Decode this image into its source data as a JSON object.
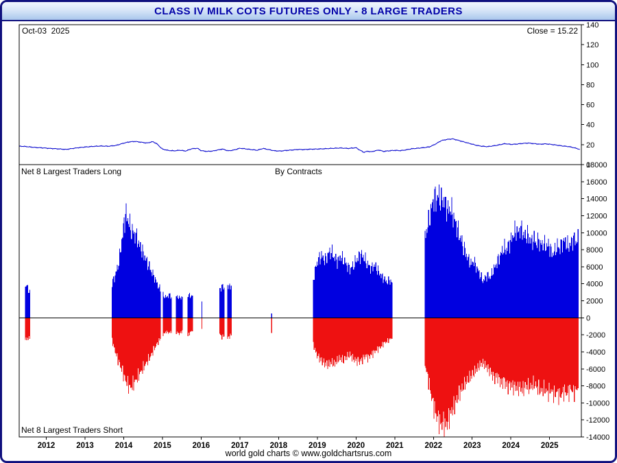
{
  "header": {
    "title": "CLASS IV MILK COTS FUTURES ONLY - 8 LARGE TRADERS"
  },
  "top_panel": {
    "date_label": "Oct-03  2025",
    "close_label": "Close = 15.22"
  },
  "bottom_panel": {
    "long_label": "Net 8 Largest Traders Long",
    "by_contracts_label": "By Contracts",
    "short_label": "Net 8 Largest Traders Short"
  },
  "footer": {
    "text": "world gold charts © www.goldchartsrus.com"
  },
  "colors": {
    "frame_border": "#10107e",
    "title_text": "#0000a8",
    "axis": "#000000",
    "price_line": "#0000cc",
    "long_bar": "#0000e0",
    "short_bar": "#ee1111"
  },
  "chart_data": [
    {
      "type": "line",
      "title": "Class IV Milk futures price",
      "ylabel_side": "right",
      "ylim": [
        0,
        140
      ],
      "ytick_step": 20,
      "xlim": [
        2011.3,
        2025.82
      ],
      "color": "#0000cc",
      "close_value": 15.22,
      "points": [
        [
          2011.3,
          18.5
        ],
        [
          2011.5,
          18.0
        ],
        [
          2011.7,
          17.2
        ],
        [
          2011.9,
          16.8
        ],
        [
          2012.1,
          16.2
        ],
        [
          2012.3,
          15.8
        ],
        [
          2012.5,
          15.2
        ],
        [
          2012.65,
          16.0
        ],
        [
          2012.8,
          16.8
        ],
        [
          2013.0,
          17.6
        ],
        [
          2013.2,
          18.2
        ],
        [
          2013.4,
          18.6
        ],
        [
          2013.6,
          18.4
        ],
        [
          2013.8,
          19.2
        ],
        [
          2014.0,
          21.5
        ],
        [
          2014.15,
          22.8
        ],
        [
          2014.3,
          23.2
        ],
        [
          2014.45,
          22.4
        ],
        [
          2014.6,
          21.6
        ],
        [
          2014.75,
          23.0
        ],
        [
          2014.85,
          21.0
        ],
        [
          2015.0,
          15.5
        ],
        [
          2015.15,
          14.2
        ],
        [
          2015.3,
          13.8
        ],
        [
          2015.45,
          14.4
        ],
        [
          2015.6,
          13.6
        ],
        [
          2015.75,
          15.8
        ],
        [
          2015.9,
          16.4
        ],
        [
          2016.0,
          14.0
        ],
        [
          2016.15,
          13.2
        ],
        [
          2016.3,
          13.6
        ],
        [
          2016.45,
          14.8
        ],
        [
          2016.55,
          15.6
        ],
        [
          2016.7,
          13.8
        ],
        [
          2016.85,
          14.6
        ],
        [
          2017.0,
          16.4
        ],
        [
          2017.15,
          15.8
        ],
        [
          2017.3,
          15.0
        ],
        [
          2017.45,
          14.4
        ],
        [
          2017.6,
          16.2
        ],
        [
          2017.75,
          15.0
        ],
        [
          2017.9,
          13.8
        ],
        [
          2018.05,
          13.6
        ],
        [
          2018.2,
          14.2
        ],
        [
          2018.35,
          14.6
        ],
        [
          2018.5,
          15.2
        ],
        [
          2018.65,
          15.0
        ],
        [
          2018.8,
          15.4
        ],
        [
          2019.0,
          15.6
        ],
        [
          2019.2,
          15.9
        ],
        [
          2019.4,
          16.3
        ],
        [
          2019.6,
          16.6
        ],
        [
          2019.8,
          16.2
        ],
        [
          2020.0,
          16.9
        ],
        [
          2020.1,
          14.5
        ],
        [
          2020.2,
          12.3
        ],
        [
          2020.3,
          13.4
        ],
        [
          2020.4,
          12.8
        ],
        [
          2020.5,
          13.9
        ],
        [
          2020.6,
          14.6
        ],
        [
          2020.7,
          13.2
        ],
        [
          2020.8,
          13.6
        ],
        [
          2020.9,
          14.0
        ],
        [
          2021.0,
          14.3
        ],
        [
          2021.15,
          14.0
        ],
        [
          2021.3,
          14.8
        ],
        [
          2021.45,
          15.9
        ],
        [
          2021.6,
          16.4
        ],
        [
          2021.75,
          17.0
        ],
        [
          2021.9,
          17.8
        ],
        [
          2022.05,
          20.5
        ],
        [
          2022.2,
          24.0
        ],
        [
          2022.35,
          25.2
        ],
        [
          2022.5,
          25.8
        ],
        [
          2022.65,
          24.2
        ],
        [
          2022.8,
          22.6
        ],
        [
          2022.95,
          21.0
        ],
        [
          2023.1,
          19.4
        ],
        [
          2023.25,
          18.4
        ],
        [
          2023.4,
          18.0
        ],
        [
          2023.55,
          18.8
        ],
        [
          2023.7,
          19.8
        ],
        [
          2023.85,
          21.0
        ],
        [
          2024.0,
          20.2
        ],
        [
          2024.15,
          20.6
        ],
        [
          2024.3,
          21.2
        ],
        [
          2024.45,
          21.6
        ],
        [
          2024.6,
          21.0
        ],
        [
          2024.75,
          20.4
        ],
        [
          2024.9,
          20.8
        ],
        [
          2025.05,
          20.2
        ],
        [
          2025.2,
          19.4
        ],
        [
          2025.35,
          18.6
        ],
        [
          2025.5,
          18.0
        ],
        [
          2025.6,
          17.2
        ],
        [
          2025.7,
          16.2
        ],
        [
          2025.78,
          15.22
        ]
      ]
    },
    {
      "type": "bar",
      "title": "Net positions of 8 largest traders, by contracts",
      "ylim": [
        -14000,
        18000
      ],
      "ytick_step": 2000,
      "xlim": [
        2011.3,
        2025.82
      ],
      "xticks": [
        2012,
        2013,
        2014,
        2015,
        2016,
        2017,
        2018,
        2019,
        2020,
        2021,
        2022,
        2023,
        2024,
        2025
      ],
      "bar_interval_years": 0.0192,
      "jitter": 0.08,
      "series": [
        {
          "name": "Net 8 Largest Traders Long",
          "color": "#0000e0"
        },
        {
          "name": "Net 8 Largest Traders Short",
          "color": "#ee1111"
        }
      ],
      "segments": [
        [
          [
            2011.46,
            3600,
            -2400
          ],
          [
            2011.5,
            3800,
            -2600
          ],
          [
            2011.54,
            3200,
            -2300
          ],
          [
            2011.58,
            2900,
            -2500
          ]
        ],
        [
          [
            2013.7,
            4000,
            -2600
          ],
          [
            2013.78,
            5000,
            -4000
          ],
          [
            2013.86,
            6200,
            -5000
          ],
          [
            2013.94,
            8600,
            -6000
          ],
          [
            2014.0,
            11000,
            -6800
          ],
          [
            2014.06,
            12300,
            -7400
          ],
          [
            2014.12,
            11400,
            -8000
          ],
          [
            2014.18,
            10600,
            -8200
          ],
          [
            2014.25,
            10000,
            -7800
          ],
          [
            2014.32,
            9600,
            -7300
          ],
          [
            2014.4,
            8600,
            -6700
          ],
          [
            2014.48,
            7800,
            -6100
          ],
          [
            2014.56,
            7000,
            -5500
          ],
          [
            2014.64,
            6200,
            -4900
          ],
          [
            2014.72,
            5400,
            -4300
          ],
          [
            2014.8,
            4700,
            -3600
          ],
          [
            2014.88,
            3900,
            -2900
          ],
          [
            2014.96,
            3200,
            -2400
          ]
        ],
        [
          [
            2015.02,
            2700,
            -2000
          ],
          [
            2015.1,
            2400,
            -1600
          ],
          [
            2015.18,
            2700,
            -1800
          ],
          [
            2015.25,
            2300,
            -1500
          ]
        ],
        [
          [
            2015.36,
            2600,
            -1700
          ],
          [
            2015.44,
            2300,
            -1900
          ],
          [
            2015.52,
            2500,
            -1500
          ]
        ],
        [
          [
            2015.66,
            2800,
            -2100
          ],
          [
            2015.72,
            2500,
            -1700
          ],
          [
            2015.78,
            2700,
            -1500
          ]
        ],
        [
          [
            2016.02,
            1900,
            -1300
          ]
        ],
        [
          [
            2016.48,
            3300,
            -1900
          ],
          [
            2016.54,
            3700,
            -2300
          ],
          [
            2016.6,
            3500,
            -2100
          ]
        ],
        [
          [
            2016.68,
            3800,
            -2400
          ],
          [
            2016.73,
            3600,
            -2200
          ],
          [
            2016.78,
            3900,
            -2000
          ]
        ],
        [
          [
            2017.82,
            500,
            -1800
          ]
        ],
        [
          [
            2018.9,
            4600,
            -3100
          ],
          [
            2018.97,
            6200,
            -4200
          ],
          [
            2019.04,
            6900,
            -4700
          ],
          [
            2019.12,
            7300,
            -5100
          ],
          [
            2019.2,
            6700,
            -5400
          ],
          [
            2019.28,
            7600,
            -5600
          ],
          [
            2019.36,
            7800,
            -5200
          ],
          [
            2019.44,
            7100,
            -5500
          ],
          [
            2019.52,
            6600,
            -5000
          ],
          [
            2019.6,
            7200,
            -4700
          ],
          [
            2019.68,
            6800,
            -5100
          ],
          [
            2019.76,
            6200,
            -4600
          ],
          [
            2019.84,
            5700,
            -4300
          ],
          [
            2019.92,
            6100,
            -4800
          ],
          [
            2020.0,
            6700,
            -5000
          ],
          [
            2020.08,
            7300,
            -5200
          ],
          [
            2020.16,
            7400,
            -4900
          ],
          [
            2020.24,
            6800,
            -4500
          ],
          [
            2020.32,
            6200,
            -4700
          ],
          [
            2020.4,
            5800,
            -4300
          ],
          [
            2020.48,
            6200,
            -4000
          ],
          [
            2020.56,
            5600,
            -3700
          ],
          [
            2020.64,
            5000,
            -3400
          ],
          [
            2020.72,
            4600,
            -3000
          ],
          [
            2020.8,
            4200,
            -2800
          ],
          [
            2020.88,
            4400,
            -2500
          ],
          [
            2020.95,
            4000,
            -2300
          ]
        ],
        [
          [
            2021.78,
            9500,
            -5500
          ],
          [
            2021.84,
            10600,
            -6600
          ],
          [
            2021.9,
            11600,
            -8000
          ],
          [
            2021.96,
            13100,
            -9600
          ],
          [
            2022.02,
            14300,
            -10600
          ],
          [
            2022.08,
            13800,
            -11600
          ],
          [
            2022.14,
            14500,
            -12000
          ],
          [
            2022.2,
            13600,
            -12600
          ],
          [
            2022.26,
            13900,
            -12200
          ],
          [
            2022.32,
            13200,
            -12800
          ],
          [
            2022.38,
            12600,
            -12100
          ],
          [
            2022.44,
            13000,
            -11300
          ],
          [
            2022.5,
            12100,
            -10700
          ],
          [
            2022.56,
            11300,
            -10100
          ],
          [
            2022.62,
            10500,
            -9500
          ],
          [
            2022.68,
            9700,
            -8900
          ],
          [
            2022.74,
            8900,
            -8300
          ],
          [
            2022.8,
            8100,
            -7900
          ],
          [
            2022.86,
            7300,
            -7500
          ],
          [
            2022.92,
            6700,
            -7100
          ],
          [
            2022.98,
            6300,
            -6900
          ],
          [
            2023.04,
            6700,
            -6500
          ],
          [
            2023.1,
            6100,
            -6100
          ],
          [
            2023.16,
            5500,
            -5800
          ],
          [
            2023.22,
            4900,
            -5500
          ],
          [
            2023.28,
            4300,
            -5300
          ],
          [
            2023.34,
            4700,
            -5600
          ],
          [
            2023.4,
            5100,
            -5900
          ],
          [
            2023.46,
            4700,
            -6300
          ],
          [
            2023.52,
            5300,
            -6700
          ],
          [
            2023.58,
            5900,
            -7100
          ],
          [
            2023.64,
            6500,
            -6800
          ],
          [
            2023.7,
            7100,
            -7300
          ],
          [
            2023.76,
            7700,
            -7700
          ],
          [
            2023.82,
            8300,
            -7400
          ],
          [
            2023.88,
            7900,
            -7900
          ],
          [
            2023.94,
            8500,
            -8100
          ],
          [
            2024.0,
            9100,
            -7800
          ],
          [
            2024.06,
            9700,
            -8200
          ],
          [
            2024.12,
            10300,
            -8000
          ],
          [
            2024.18,
            9900,
            -8400
          ],
          [
            2024.24,
            10500,
            -8100
          ],
          [
            2024.3,
            10100,
            -8500
          ],
          [
            2024.36,
            9500,
            -8200
          ],
          [
            2024.42,
            9900,
            -7900
          ],
          [
            2024.48,
            9300,
            -8300
          ],
          [
            2024.54,
            8900,
            -8000
          ],
          [
            2024.6,
            9300,
            -7700
          ],
          [
            2024.66,
            8700,
            -8100
          ],
          [
            2024.72,
            9100,
            -8400
          ],
          [
            2024.78,
            8500,
            -8700
          ],
          [
            2024.84,
            8900,
            -8300
          ],
          [
            2024.9,
            8300,
            -8600
          ],
          [
            2024.96,
            8700,
            -8900
          ],
          [
            2025.02,
            8100,
            -8500
          ],
          [
            2025.08,
            7500,
            -8800
          ],
          [
            2025.14,
            7900,
            -9100
          ],
          [
            2025.2,
            8500,
            -8700
          ],
          [
            2025.26,
            8100,
            -9300
          ],
          [
            2025.32,
            8700,
            -8900
          ],
          [
            2025.38,
            9100,
            -8600
          ],
          [
            2025.44,
            8700,
            -9000
          ],
          [
            2025.5,
            8300,
            -8700
          ],
          [
            2025.56,
            8900,
            -8400
          ],
          [
            2025.62,
            9300,
            -8800
          ],
          [
            2025.68,
            8900,
            -8500
          ],
          [
            2025.74,
            9300,
            -8100
          ]
        ]
      ]
    }
  ]
}
